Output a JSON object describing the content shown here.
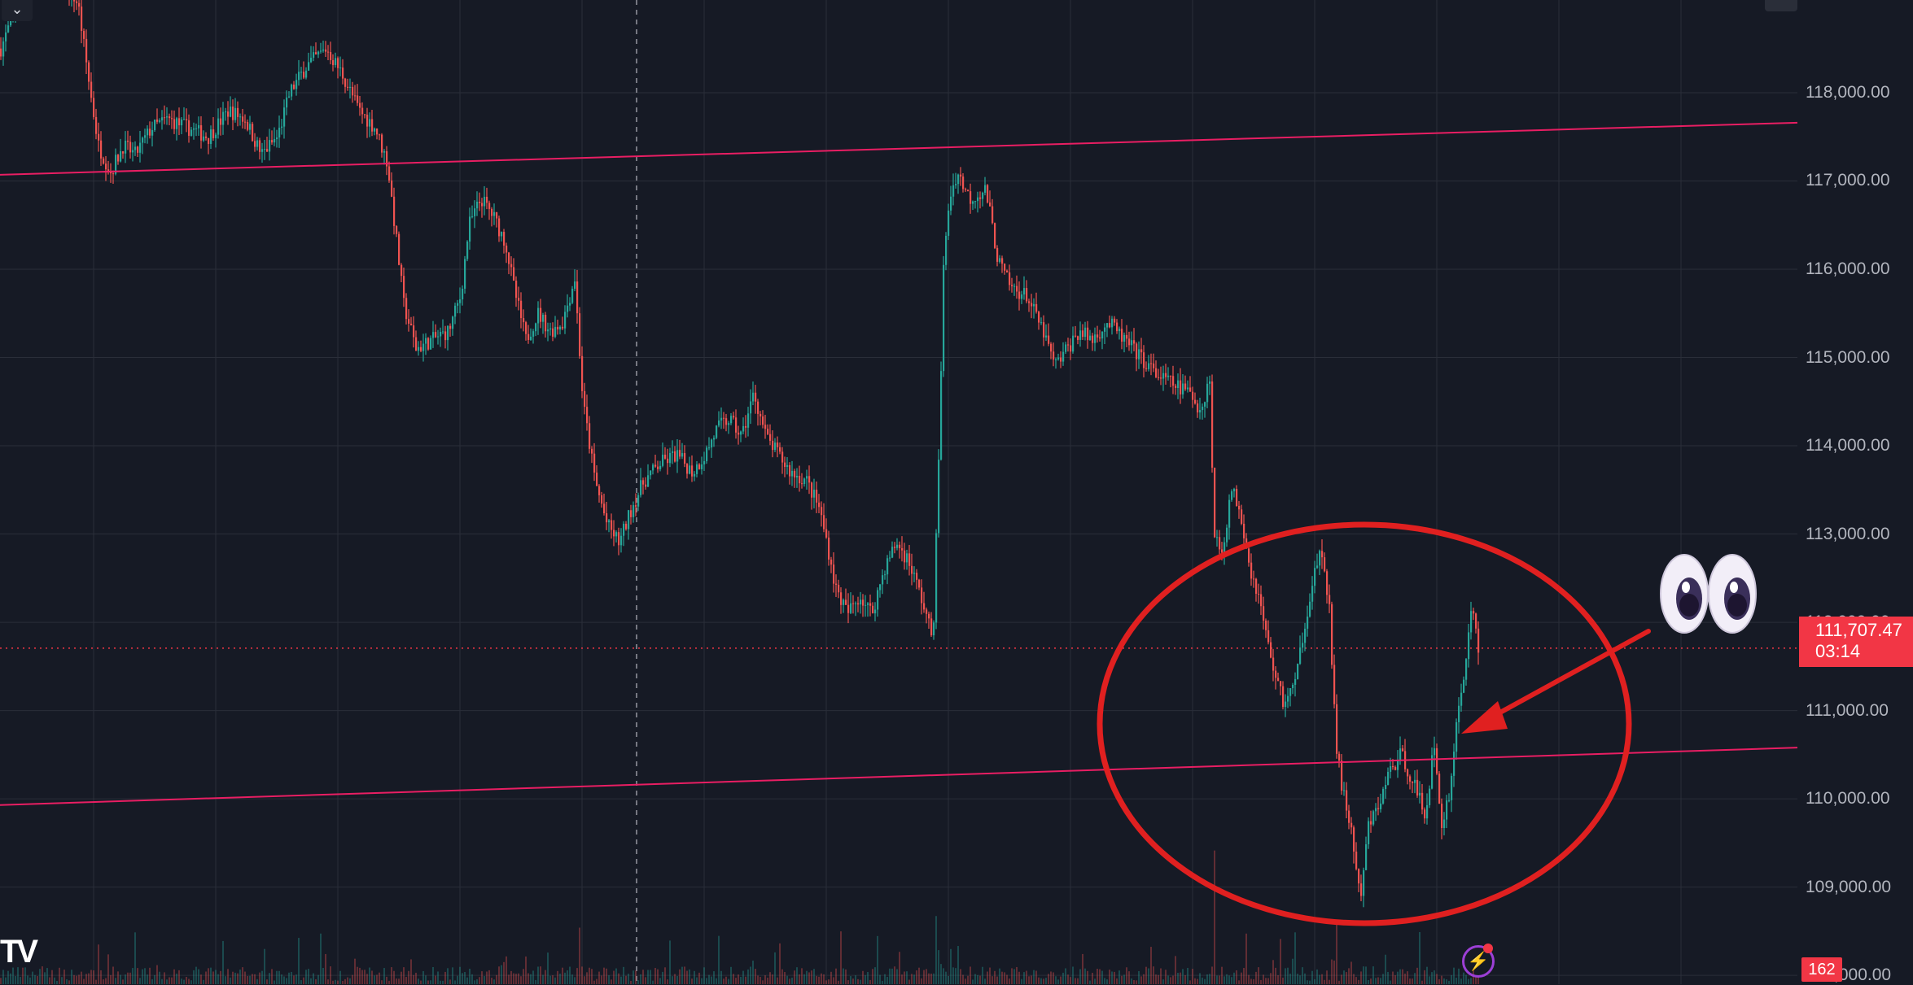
{
  "chart_data": {
    "type": "candlestick",
    "y_axis_ticks": [
      "118,000.00",
      "117,000.00",
      "116,000.00",
      "115,000.00",
      "114,000.00",
      "113,000.00",
      "112,000.00",
      "111,000.00",
      "110,000.00",
      "109,000.00",
      "108,000.00"
    ],
    "y_tick_values": [
      118000,
      117000,
      116000,
      115000,
      114000,
      113000,
      112000,
      111000,
      110000,
      109000,
      108000
    ],
    "ylim": [
      107900,
      119050
    ],
    "last_price": "111,707.47",
    "last_price_value": 111707.47,
    "countdown": "03:14",
    "volume_label": "162",
    "price_path": [
      [
        0,
        118500
      ],
      [
        20,
        119000
      ],
      [
        45,
        119300
      ],
      [
        70,
        119400
      ],
      [
        95,
        119000
      ],
      [
        110,
        118000
      ],
      [
        120,
        117400
      ],
      [
        135,
        117100
      ],
      [
        150,
        117400
      ],
      [
        165,
        117300
      ],
      [
        185,
        117600
      ],
      [
        205,
        117700
      ],
      [
        230,
        117600
      ],
      [
        255,
        117500
      ],
      [
        280,
        117800
      ],
      [
        300,
        117700
      ],
      [
        320,
        117300
      ],
      [
        340,
        117500
      ],
      [
        355,
        118000
      ],
      [
        375,
        118300
      ],
      [
        400,
        118500
      ],
      [
        420,
        118200
      ],
      [
        440,
        117800
      ],
      [
        460,
        117600
      ],
      [
        475,
        117200
      ],
      [
        485,
        116400
      ],
      [
        495,
        115600
      ],
      [
        510,
        115100
      ],
      [
        530,
        115200
      ],
      [
        550,
        115300
      ],
      [
        565,
        115700
      ],
      [
        575,
        116500
      ],
      [
        590,
        116800
      ],
      [
        605,
        116600
      ],
      [
        620,
        116300
      ],
      [
        630,
        115800
      ],
      [
        645,
        115200
      ],
      [
        660,
        115500
      ],
      [
        675,
        115300
      ],
      [
        690,
        115400
      ],
      [
        705,
        115900
      ],
      [
        715,
        114500
      ],
      [
        730,
        113600
      ],
      [
        745,
        113100
      ],
      [
        760,
        112900
      ],
      [
        775,
        113300
      ],
      [
        790,
        113600
      ],
      [
        810,
        113800
      ],
      [
        830,
        113900
      ],
      [
        850,
        113700
      ],
      [
        865,
        113900
      ],
      [
        880,
        114200
      ],
      [
        895,
        114300
      ],
      [
        910,
        114100
      ],
      [
        925,
        114600
      ],
      [
        940,
        114100
      ],
      [
        955,
        113900
      ],
      [
        970,
        113700
      ],
      [
        990,
        113600
      ],
      [
        1005,
        113300
      ],
      [
        1015,
        112900
      ],
      [
        1025,
        112400
      ],
      [
        1040,
        112100
      ],
      [
        1055,
        112300
      ],
      [
        1070,
        112100
      ],
      [
        1085,
        112600
      ],
      [
        1100,
        112900
      ],
      [
        1115,
        112700
      ],
      [
        1130,
        112300
      ],
      [
        1145,
        111800
      ],
      [
        1152,
        113800
      ],
      [
        1158,
        116000
      ],
      [
        1165,
        116800
      ],
      [
        1175,
        117100
      ],
      [
        1190,
        116800
      ],
      [
        1210,
        116900
      ],
      [
        1225,
        116100
      ],
      [
        1240,
        115800
      ],
      [
        1260,
        115700
      ],
      [
        1280,
        115300
      ],
      [
        1295,
        114900
      ],
      [
        1310,
        115100
      ],
      [
        1325,
        115300
      ],
      [
        1340,
        115200
      ],
      [
        1360,
        115400
      ],
      [
        1380,
        115200
      ],
      [
        1400,
        115000
      ],
      [
        1420,
        114800
      ],
      [
        1440,
        114700
      ],
      [
        1460,
        114600
      ],
      [
        1475,
        114400
      ],
      [
        1485,
        114800
      ],
      [
        1490,
        113000
      ],
      [
        1500,
        112800
      ],
      [
        1512,
        113500
      ],
      [
        1522,
        113300
      ],
      [
        1535,
        112600
      ],
      [
        1545,
        112300
      ],
      [
        1560,
        111600
      ],
      [
        1575,
        111100
      ],
      [
        1590,
        111300
      ],
      [
        1600,
        111900
      ],
      [
        1610,
        112400
      ],
      [
        1620,
        112800
      ],
      [
        1632,
        112200
      ],
      [
        1640,
        110600
      ],
      [
        1648,
        110100
      ],
      [
        1660,
        109600
      ],
      [
        1670,
        108800
      ],
      [
        1680,
        109700
      ],
      [
        1692,
        109900
      ],
      [
        1705,
        110300
      ],
      [
        1720,
        110500
      ],
      [
        1735,
        110200
      ],
      [
        1750,
        109800
      ],
      [
        1760,
        110600
      ],
      [
        1770,
        109700
      ],
      [
        1780,
        110100
      ],
      [
        1790,
        111000
      ],
      [
        1800,
        111600
      ],
      [
        1808,
        112200
      ],
      [
        1815,
        111700
      ]
    ],
    "trend_lines": [
      {
        "color": "#e91e63",
        "points": [
          [
            0,
            117070
          ],
          [
            2208,
            117660
          ]
        ]
      },
      {
        "color": "#e91e63",
        "points": [
          [
            0,
            109930
          ],
          [
            2208,
            110580
          ]
        ]
      }
    ],
    "annotations": [
      {
        "type": "ellipse",
        "color": "#e02020"
      },
      {
        "type": "arrow",
        "color": "#e02020"
      },
      {
        "type": "emoji",
        "icon": "eyes-emoji"
      }
    ]
  },
  "icons": {
    "collapse": "chevron-down-icon",
    "clock": "clock-icon",
    "brand": "tradingview-logo",
    "bolt": "lightning-icon"
  },
  "brand_text": "TV",
  "colors": {
    "background": "#161a25",
    "grid": "#2a2e39",
    "up": "#26a69a",
    "down": "#ef5350",
    "trend": "#e91e63",
    "annotation": "#e02020",
    "price_tag": "#f23645"
  }
}
